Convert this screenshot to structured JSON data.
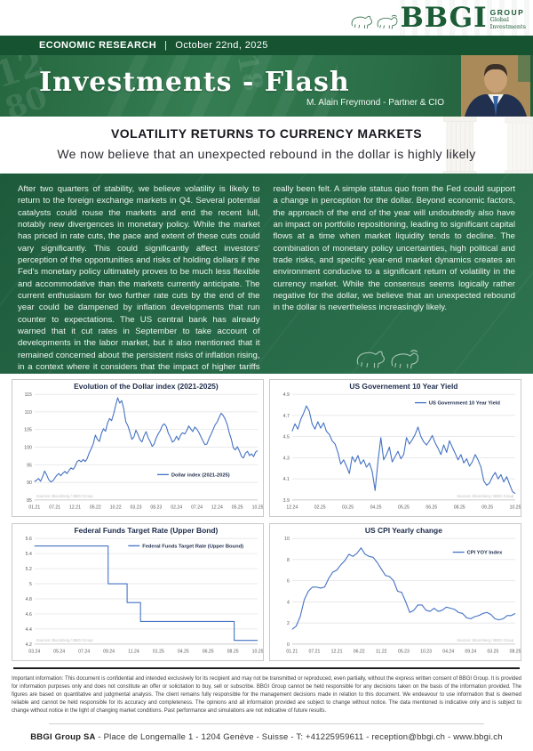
{
  "header": {
    "logo": {
      "text": "BBGI",
      "group": "GROUP",
      "sub1": "Global",
      "sub2": "Investments"
    },
    "bar": {
      "label": "ECONOMIC RESEARCH",
      "separator": "|",
      "date": "October 22nd, 2025"
    },
    "banner": {
      "title": "Investments - Flash",
      "author": "M. Alain Freymond - Partner & CIO",
      "watermark_numbers": [
        "12",
        "80",
        "18"
      ]
    }
  },
  "article": {
    "title": "VOLATILITY RETURNS TO CURRENCY MARKETS",
    "subtitle": "We now believe that an unexpected rebound in the dollar is highly likely",
    "left_column": "After two quarters of stability, we believe volatility is likely to return to the foreign exchange markets in Q4. Several potential catalysts could rouse the markets and end the recent lull, notably new divergences in monetary policy. While the market has priced in rate cuts, the pace and extent of these cuts could vary significantly. This could significantly affect investors' perception of the opportunities and risks of holding dollars if the Fed's monetary policy ultimately proves to be much less flexible and accommodative than the markets currently anticipate. The current enthusiasm for two further rate cuts by the end of the year could be dampened by inflation developments that run counter to expectations. The US central bank has already warned that it cut rates in September to take account of developments in the labor market, but it also mentioned that it remained concerned about the persistent risks of inflation rising, in a context where it considers that the impact of higher tariffs on prices has not yet",
    "right_column": "really been felt. A simple status quo from the Fed could support a change in perception for the dollar. Beyond economic factors, the approach of the end of the year will undoubtedly also have an impact on portfolio repositioning, leading to significant capital flows at a time when market liquidity tends to decline. The combination of monetary policy uncertainties, high political and trade risks, and specific year-end market dynamics creates an environment conducive to a significant return of volatility in the currency market. While the consensus seems logically rather negative for the dollar, we believe that an unexpected rebound in the dollar is nevertheless increasingly likely."
  },
  "chart_data": [
    {
      "type": "line",
      "title": "Evolution of the Dollar index (2021-2025)",
      "legend": "Dollar index (2021-2025)",
      "legend_pos": {
        "x": 0.55,
        "y": 0.76
      },
      "source": "Sources: Bloomberg / BBGI Group",
      "source_position": "bottom-left",
      "line_color": "#4472c4",
      "ylim": [
        85,
        115
      ],
      "yticks": [
        "85",
        "90",
        "95",
        "100",
        "105",
        "110",
        "115"
      ],
      "x_labels": [
        "01.21",
        "07.21",
        "12.21",
        "05.22",
        "10.22",
        "03.23",
        "08.23",
        "02.24",
        "07.24",
        "12.24",
        "05.25",
        "10.25"
      ],
      "values": [
        90.2,
        90.6,
        91.1,
        90.3,
        91.6,
        93.2,
        92.1,
        90.8,
        90.1,
        90.4,
        91.2,
        92.0,
        92.5,
        91.9,
        92.6,
        93.1,
        92.5,
        93.4,
        94.1,
        93.7,
        94.5,
        95.9,
        96.3,
        95.8,
        96.5,
        95.9,
        96.8,
        98.4,
        99.6,
        101.0,
        103.4,
        102.2,
        101.6,
        103.9,
        105.2,
        104.5,
        106.8,
        108.1,
        107.5,
        109.4,
        111.8,
        114.0,
        112.5,
        113.2,
        110.8,
        107.2,
        106.1,
        104.3,
        102.2,
        102.9,
        104.8,
        103.6,
        102.1,
        101.5,
        103.2,
        104.4,
        102.7,
        101.6,
        100.2,
        100.9,
        102.6,
        103.8,
        104.7,
        106.1,
        106.6,
        105.8,
        103.9,
        102.8,
        101.4,
        101.9,
        103.1,
        102.0,
        103.4,
        104.1,
        103.7,
        104.6,
        106.0,
        105.2,
        104.4,
        105.7,
        105.1,
        104.2,
        103.0,
        101.8,
        100.7,
        100.9,
        102.4,
        103.6,
        104.9,
        106.3,
        107.1,
        108.4,
        109.6,
        109.0,
        107.9,
        106.4,
        104.1,
        102.3,
        99.8,
        99.2,
        100.1,
        98.9,
        97.4,
        96.9,
        98.3,
        98.8,
        97.6,
        98.1,
        97.3,
        98.6,
        99.0
      ]
    },
    {
      "type": "line",
      "title": "US Governement 10 Year Yield",
      "legend": "US Government 10 Year Yield",
      "legend_pos": {
        "x": 0.55,
        "y": 0.08
      },
      "source": "Sources: Bloomberg / BBGI Group",
      "source_position": "bottom-right",
      "line_color": "#4472c4",
      "ylim": [
        3.9,
        4.9
      ],
      "yticks": [
        "3.9",
        "4.1",
        "4.3",
        "4.5",
        "4.7",
        "4.9"
      ],
      "x_labels": [
        "12.24",
        "02.25",
        "03.25",
        "04.25",
        "05.25",
        "06.25",
        "08.25",
        "09.25",
        "10.25"
      ],
      "values": [
        4.55,
        4.62,
        4.57,
        4.66,
        4.72,
        4.79,
        4.74,
        4.62,
        4.57,
        4.64,
        4.58,
        4.63,
        4.55,
        4.52,
        4.46,
        4.43,
        4.35,
        4.24,
        4.28,
        4.22,
        4.15,
        4.31,
        4.26,
        4.32,
        4.24,
        4.28,
        4.21,
        4.25,
        4.17,
        3.99,
        4.26,
        4.49,
        4.28,
        4.33,
        4.4,
        4.26,
        4.31,
        4.36,
        4.29,
        4.33,
        4.49,
        4.43,
        4.47,
        4.52,
        4.59,
        4.5,
        4.45,
        4.42,
        4.46,
        4.51,
        4.44,
        4.39,
        4.33,
        4.42,
        4.35,
        4.46,
        4.4,
        4.34,
        4.28,
        4.33,
        4.25,
        4.29,
        4.22,
        4.26,
        4.33,
        4.28,
        4.21,
        4.08,
        4.04,
        4.06,
        4.12,
        4.16,
        4.1,
        4.14,
        4.07,
        4.12,
        4.05,
        3.98,
        3.96
      ]
    },
    {
      "type": "line",
      "title": "Federal Funds Target Rate (Upper Bond)",
      "legend": "Federal Funds Target Rate  (Upper Bound)",
      "legend_pos": {
        "x": 0.42,
        "y": 0.07
      },
      "source": "Sources: Bloomberg / BBGI Group",
      "source_position": "bottom-left",
      "line_color": "#4472c4",
      "ylim": [
        4.2,
        5.6
      ],
      "yticks": [
        "4.2",
        "4.4",
        "4.6",
        "4.8",
        "5",
        "5.2",
        "5.4",
        "5.6"
      ],
      "x_labels": [
        "03.24",
        "05.24",
        "07.24",
        "09.24",
        "11.24",
        "01.25",
        "04.25",
        "06.25",
        "08.25",
        "10.25"
      ],
      "step_points": [
        [
          0,
          5.5
        ],
        [
          0.33,
          5.5
        ],
        [
          0.33,
          5.0
        ],
        [
          0.415,
          5.0
        ],
        [
          0.415,
          4.75
        ],
        [
          0.475,
          4.75
        ],
        [
          0.475,
          4.5
        ],
        [
          0.895,
          4.5
        ],
        [
          0.895,
          4.25
        ],
        [
          1,
          4.25
        ]
      ],
      "note": "x values are fractions of the axis span 03.24 to 10.25"
    },
    {
      "type": "line",
      "title": "US CPI Yearly change",
      "legend": "CPI YOY Index",
      "legend_pos": {
        "x": 0.72,
        "y": 0.13
      },
      "source": "Sources: Bloomberg / BBGI Group",
      "source_position": "bottom-right",
      "line_color": "#4472c4",
      "ylim": [
        0,
        10
      ],
      "yticks": [
        "0",
        "2",
        "4",
        "6",
        "8",
        "10"
      ],
      "x_labels": [
        "01.21",
        "07.21",
        "12.21",
        "06.22",
        "11.22",
        "05.23",
        "10.23",
        "04.24",
        "09.24",
        "03.25",
        "08.25"
      ],
      "values": [
        1.4,
        1.7,
        2.6,
        4.2,
        5.0,
        5.4,
        5.4,
        5.3,
        5.4,
        6.2,
        6.8,
        7.0,
        7.5,
        7.9,
        8.5,
        8.3,
        8.6,
        9.1,
        8.5,
        8.3,
        8.2,
        7.7,
        7.1,
        6.5,
        6.4,
        6.0,
        5.0,
        4.9,
        4.0,
        3.0,
        3.2,
        3.7,
        3.7,
        3.2,
        3.1,
        3.4,
        3.1,
        3.2,
        3.5,
        3.4,
        3.3,
        3.0,
        2.9,
        2.5,
        2.4,
        2.6,
        2.7,
        2.9,
        3.0,
        2.8,
        2.4,
        2.3,
        2.4,
        2.7,
        2.7,
        2.9
      ]
    }
  ],
  "disclaimer": "Important information: This document is confidential and intended exclusively for its recipient and may not be transmitted or reproduced, even partially, without the express written consent of BBGI Group. It is provided for information purposes only and does not constitute an offer or solicitation to buy, sell or subscribe.  BBGI Group cannot be held responsible for any decisions taken on the basis of the information provided. The figures are based on quantitative and judgmental analysis. The client remains fully responsible for the management decisions made in relation to this document. We endeavour to use information that is deemed reliable and cannot be held responsible for its accuracy and completeness. The opinions and all information provided are subject to change without notice. The data mentioned is indicative only and is subject to change without notice in the light of changing market conditions. Past performance and simulations are not indicative of future results.",
  "footer": {
    "company": "BBGI Group SA",
    "rest": " - Place de Longemalle 1 - 1204 Genève - Suisse - T: +41225959611 - reception@bbgi.ch - www.bbgi.ch"
  }
}
